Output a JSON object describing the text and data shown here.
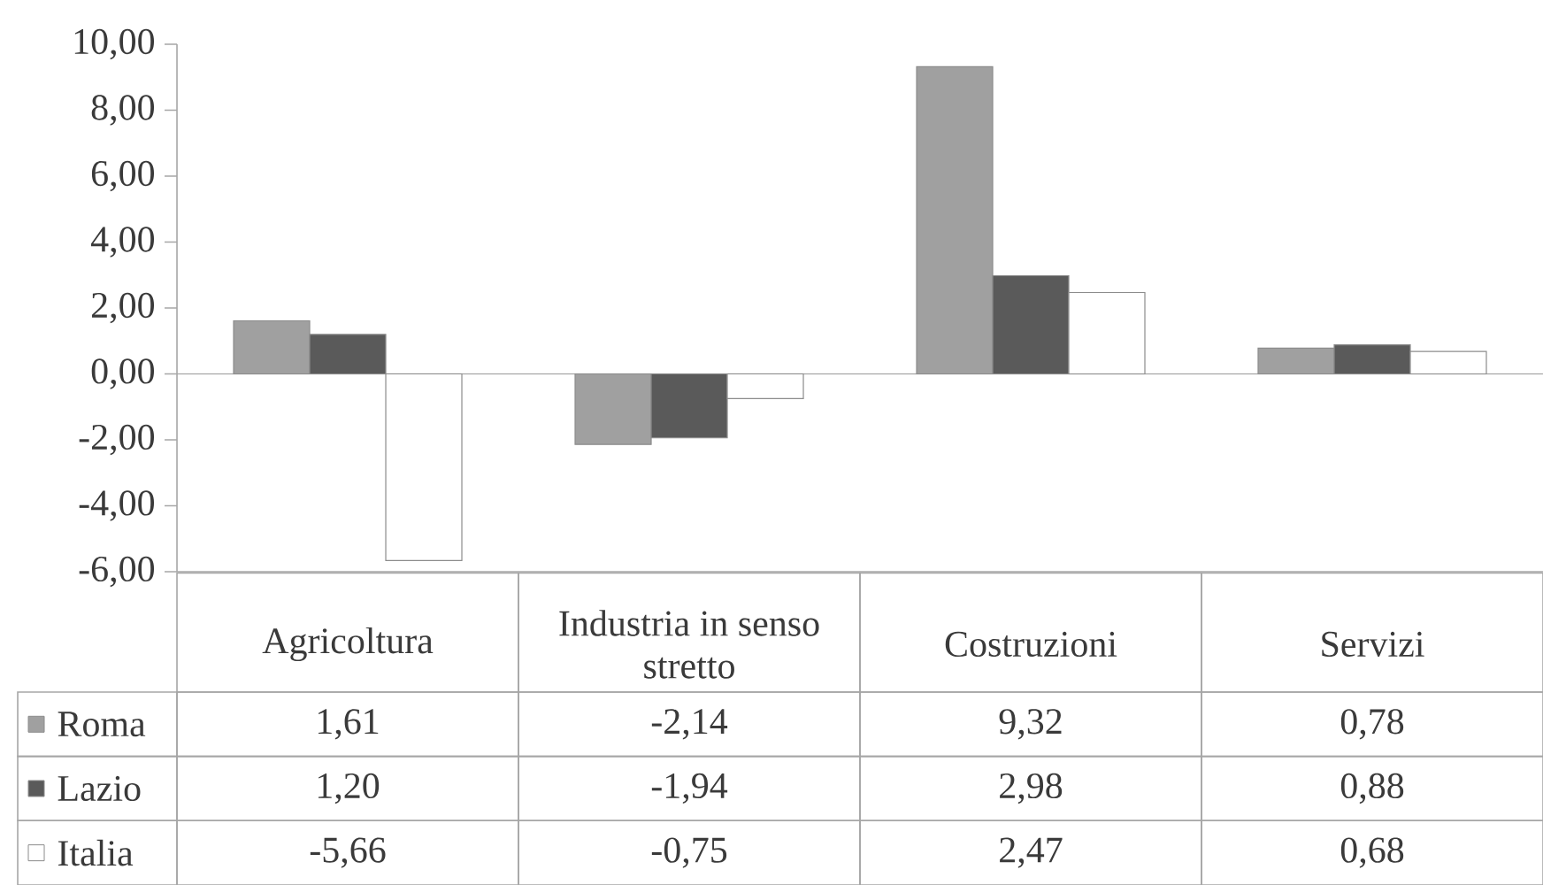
{
  "chart_data": {
    "type": "bar",
    "categories": [
      "Agricoltura",
      "Industria in senso stretto",
      "Costruzioni",
      "Servizi"
    ],
    "series": [
      {
        "name": "Roma",
        "color": "#a0a0a0",
        "values": [
          1.61,
          -2.14,
          9.32,
          0.78
        ],
        "value_labels": [
          "1,61",
          "-2,14",
          "9,32",
          "0,78"
        ]
      },
      {
        "name": "Lazio",
        "color": "#5a5a5a",
        "values": [
          1.2,
          -1.94,
          2.98,
          0.88
        ],
        "value_labels": [
          "1,20",
          "-1,94",
          "2,98",
          "0,88"
        ]
      },
      {
        "name": "Italia",
        "color": "#ffffff",
        "values": [
          -5.66,
          -0.75,
          2.47,
          0.68
        ],
        "value_labels": [
          "-5,66",
          "-0,75",
          "2,47",
          "0,68"
        ]
      }
    ],
    "ylim": [
      -6,
      10
    ],
    "yticks": [
      {
        "value": -6,
        "label": "-6,00"
      },
      {
        "value": -4,
        "label": "-4,00"
      },
      {
        "value": -2,
        "label": "-2,00"
      },
      {
        "value": 0,
        "label": "0,00"
      },
      {
        "value": 2,
        "label": "2,00"
      },
      {
        "value": 4,
        "label": "4,00"
      },
      {
        "value": 6,
        "label": "6,00"
      },
      {
        "value": 8,
        "label": "8,00"
      },
      {
        "value": 10,
        "label": "10,00"
      }
    ],
    "legend": "bottom"
  }
}
